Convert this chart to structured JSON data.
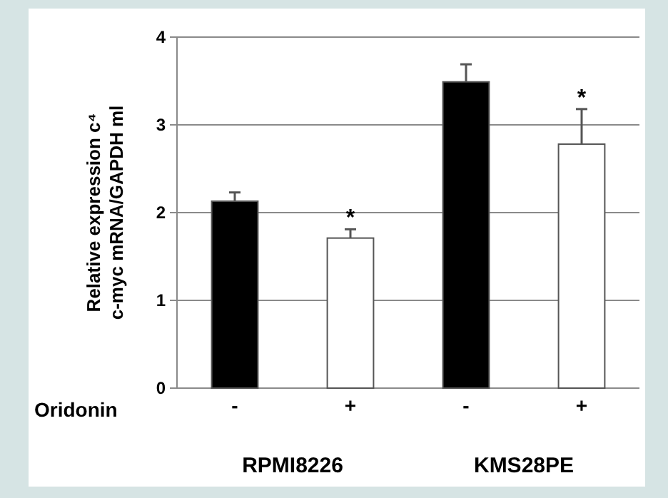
{
  "chart_data": {
    "type": "bar",
    "ylabel": "Relative expression c⁴\nc-myc mRNA/GAPDH ml",
    "categories": [
      "-",
      "+",
      "-",
      "+"
    ],
    "values": [
      2.13,
      1.71,
      3.49,
      2.78
    ],
    "colors": [
      "#000000",
      "#ffffff",
      "#000000",
      "#ffffff"
    ],
    "errors": [
      0.1,
      0.1,
      0.2,
      0.4
    ],
    "ylim": [
      0,
      4
    ],
    "yticks": [
      0,
      1,
      2,
      3,
      4
    ],
    "grid": "y",
    "annotations": [
      "*",
      "*",
      "Oridonin",
      "RPMI8226",
      "KMS28PE"
    ]
  }
}
